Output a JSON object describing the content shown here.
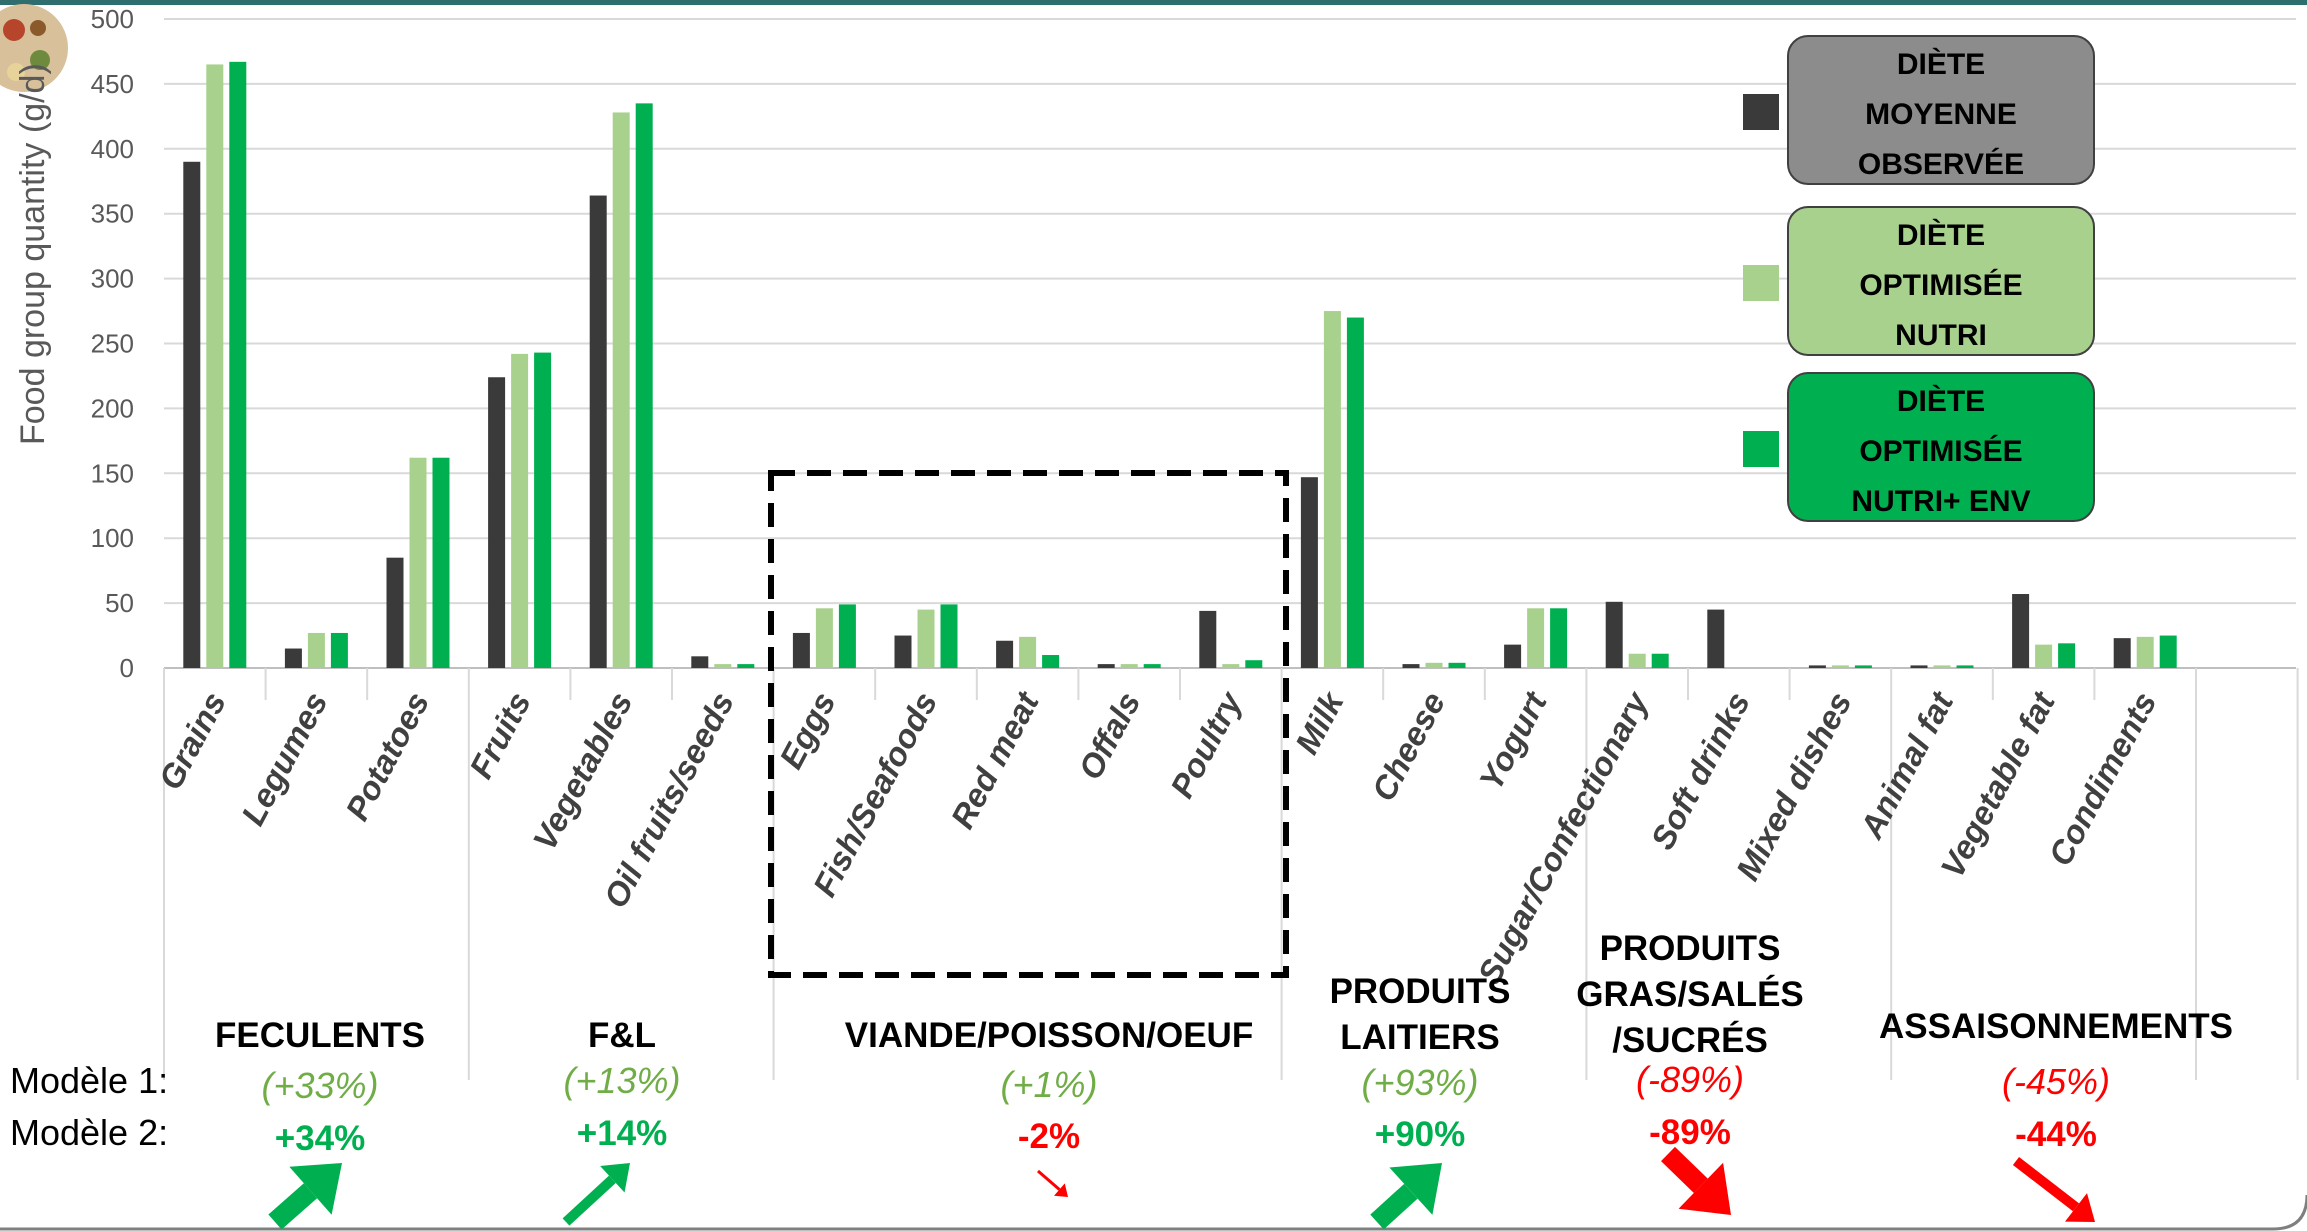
{
  "chart_data": {
    "type": "bar",
    "ylabel": "Food group quantity (g/d)",
    "ylim": [
      0,
      500
    ],
    "yticks": [
      0,
      50,
      100,
      150,
      200,
      250,
      300,
      350,
      400,
      450,
      500
    ],
    "grid": true,
    "legend_position": "top-right",
    "categories": [
      "Grains",
      "Legumes",
      "Potatoes",
      "Fruits",
      "Vegetables",
      "Oil fruits/seeds",
      "Eggs",
      "Fish/Seafoods",
      "Red meat",
      "Offals",
      "Poultry",
      "Milk",
      "Cheese",
      "Yogurt",
      "Sugar/Confectionary",
      "Soft drinks",
      "Mixed dishes",
      "Animal fat",
      "Vegetable fat",
      "Condiments"
    ],
    "series": [
      {
        "name": "DIÈTE MOYENNE OBSERVÉE",
        "color": "#3a3a3a",
        "values": [
          390,
          15,
          85,
          224,
          364,
          9,
          27,
          25,
          21,
          3,
          44,
          147,
          3,
          18,
          51,
          45,
          2,
          2,
          57,
          23
        ]
      },
      {
        "name": "DIÈTE OPTIMISÉE NUTRI",
        "color": "#a9d18e",
        "values": [
          465,
          27,
          162,
          242,
          428,
          3,
          46,
          45,
          24,
          3,
          3,
          275,
          4,
          46,
          11,
          0,
          2,
          2,
          18,
          24
        ]
      },
      {
        "name": "DIÈTE OPTIMISÉE NUTRI+ ENV",
        "color": "#00b050",
        "values": [
          467,
          27,
          162,
          243,
          435,
          3,
          49,
          49,
          10,
          3,
          6,
          270,
          4,
          46,
          11,
          0,
          2,
          2,
          19,
          25
        ]
      }
    ],
    "legend": [
      {
        "line1": "DIÈTE",
        "line2": "MOYENNE",
        "line3": "OBSERVÉE",
        "swatch": "#3a3a3a",
        "box": "#8c8c8c"
      },
      {
        "line1": "DIÈTE",
        "line2": "OPTIMISÉE",
        "line3": "NUTRI",
        "swatch": "#a9d18e",
        "box": "#a9d18e"
      },
      {
        "line1": "DIÈTE",
        "line2": "OPTIMISÉE",
        "line3": "NUTRI+ ENV",
        "swatch": "#00b050",
        "box": "#00b050"
      }
    ],
    "groups": [
      {
        "title_lines": [
          "FECULENTS"
        ],
        "model1": "(+33%)",
        "model2": "+34%",
        "trend": "up",
        "color": "#00b050",
        "color_m1": "#70ad47"
      },
      {
        "title_lines": [
          "F&L"
        ],
        "model1": "(+13%)",
        "model2": "+14%",
        "trend": "up",
        "color": "#00b050",
        "color_m1": "#70ad47"
      },
      {
        "title_lines": [
          "VIANDE/POISSON/OEUF"
        ],
        "model1": "(+1%)",
        "model2": "-2%",
        "trend": "down-small",
        "color": "#ff0000",
        "color_m1": "#70ad47"
      },
      {
        "title_lines": [
          "PRODUITS",
          "LAITIERS"
        ],
        "model1": "(+93%)",
        "model2": "+90%",
        "trend": "up",
        "color": "#00b050",
        "color_m1": "#70ad47"
      },
      {
        "title_lines": [
          "PRODUITS",
          "GRAS/SALÉS",
          "/SUCRÉS"
        ],
        "model1": "(-89%)",
        "model2": "-89%",
        "trend": "down",
        "color": "#ff0000",
        "color_m1": "#ff0000"
      },
      {
        "title_lines": [
          "ASSAISONNEMENTS"
        ],
        "model1": "(-45%)",
        "model2": "-44%",
        "trend": "down",
        "color": "#ff0000",
        "color_m1": "#ff0000"
      }
    ],
    "row_labels": {
      "model1": "Modèle 1:",
      "model2": "Modèle 2:"
    },
    "highlight": "dashed box around Eggs, Fish/Seafoods, Red meat, Offals, Poultry"
  }
}
